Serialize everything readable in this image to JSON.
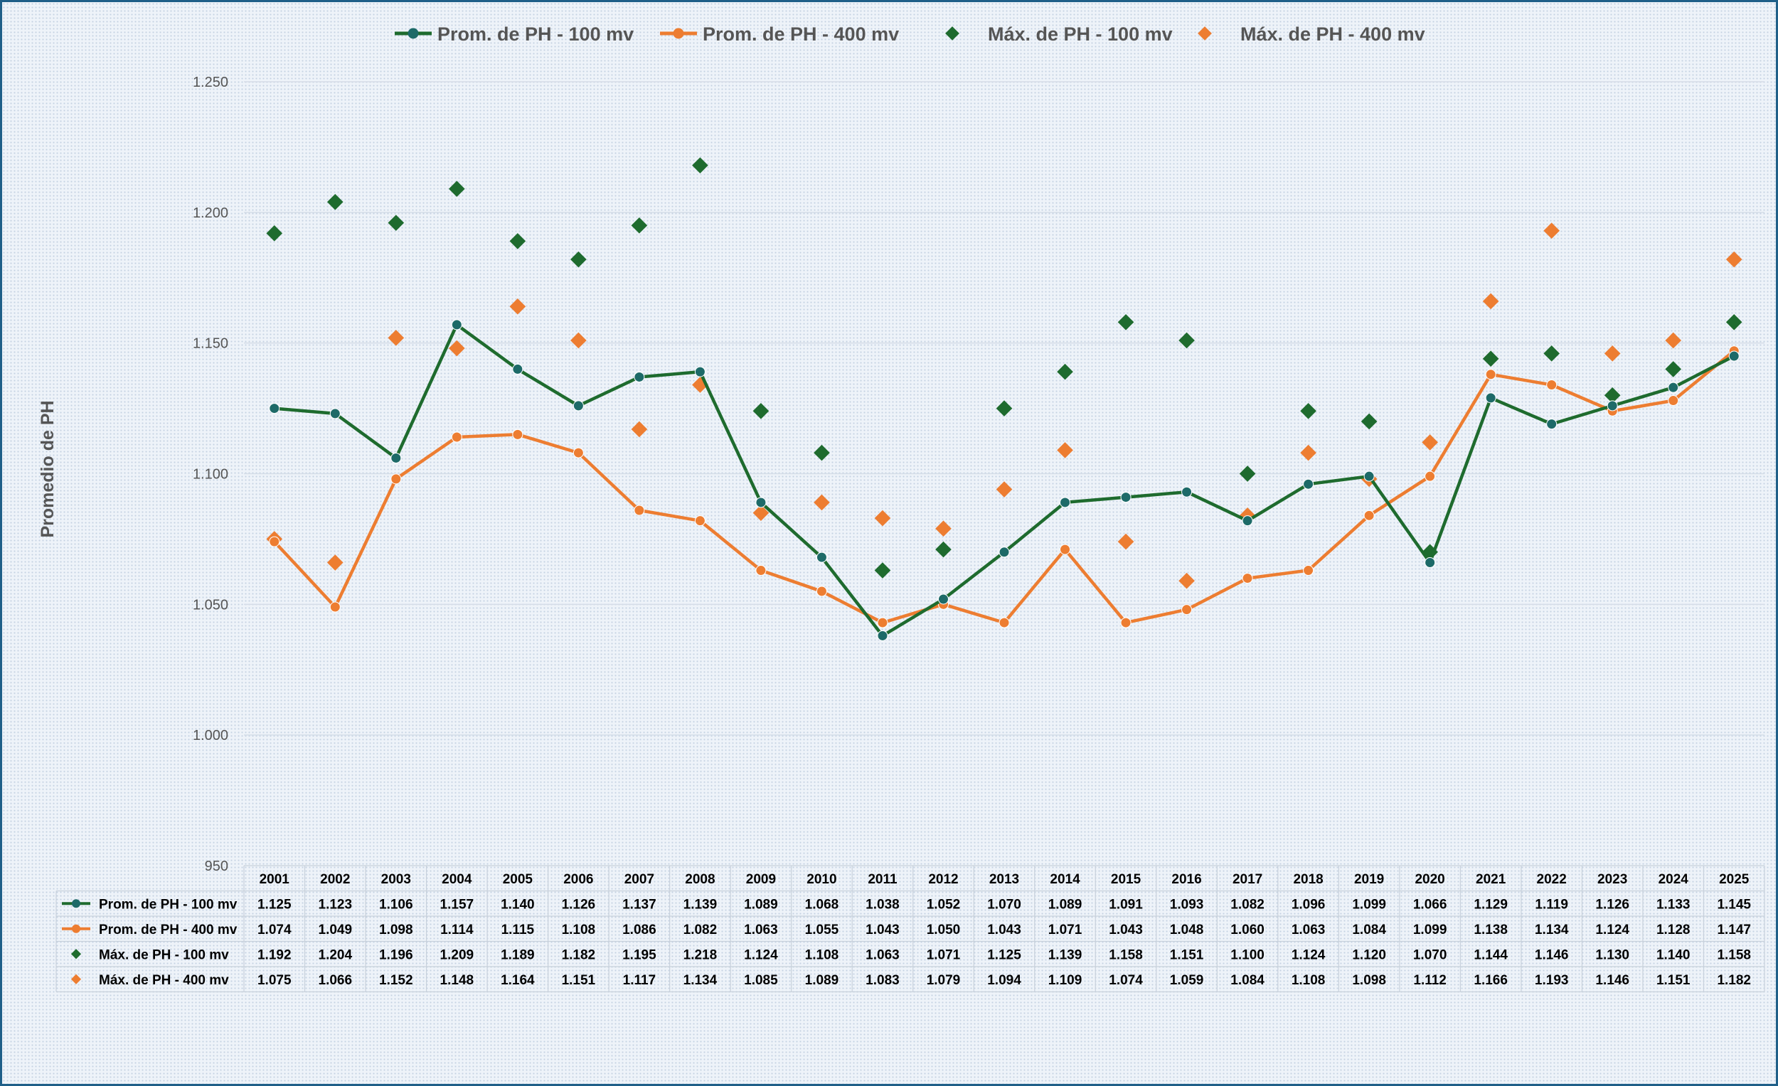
{
  "chart_data": {
    "type": "line",
    "ylabel": "Promedio de PH",
    "xlabel": "",
    "ylim": [
      950,
      1250
    ],
    "yticks": [
      "1.250",
      "1.200",
      "1.150",
      "1.100",
      "1.050",
      "1.000",
      "950"
    ],
    "ytick_values": [
      1250,
      1200,
      1150,
      1100,
      1050,
      1000,
      950
    ],
    "legend_position": "top",
    "grid": true,
    "data_table": true,
    "categories": [
      "2001",
      "2002",
      "2003",
      "2004",
      "2005",
      "2006",
      "2007",
      "2008",
      "2009",
      "2010",
      "2011",
      "2012",
      "2013",
      "2014",
      "2015",
      "2016",
      "2017",
      "2018",
      "2019",
      "2020",
      "2021",
      "2022",
      "2023",
      "2024",
      "2025"
    ],
    "series": [
      {
        "name": "Prom. de PH - 100 mv",
        "kind": "line",
        "color": "#1e6b2e",
        "marker_color": "#1d6a68",
        "values": [
          1125,
          1123,
          1106,
          1157,
          1140,
          1126,
          1137,
          1139,
          1089,
          1068,
          1038,
          1052,
          1070,
          1089,
          1091,
          1093,
          1082,
          1096,
          1099,
          1066,
          1129,
          1119,
          1126,
          1133,
          1145
        ],
        "labels": [
          "1.125",
          "1.123",
          "1.106",
          "1.157",
          "1.140",
          "1.126",
          "1.137",
          "1.139",
          "1.089",
          "1.068",
          "1.038",
          "1.052",
          "1.070",
          "1.089",
          "1.091",
          "1.093",
          "1.082",
          "1.096",
          "1.099",
          "1.066",
          "1.129",
          "1.119",
          "1.126",
          "1.133",
          "1.145"
        ]
      },
      {
        "name": "Prom. de PH - 400 mv",
        "kind": "line",
        "color": "#ed7d31",
        "marker_color": "#ed7d31",
        "values": [
          1074,
          1049,
          1098,
          1114,
          1115,
          1108,
          1086,
          1082,
          1063,
          1055,
          1043,
          1050,
          1043,
          1071,
          1043,
          1048,
          1060,
          1063,
          1084,
          1099,
          1138,
          1134,
          1124,
          1128,
          1147
        ],
        "labels": [
          "1.074",
          "1.049",
          "1.098",
          "1.114",
          "1.115",
          "1.108",
          "1.086",
          "1.082",
          "1.063",
          "1.055",
          "1.043",
          "1.050",
          "1.043",
          "1.071",
          "1.043",
          "1.048",
          "1.060",
          "1.063",
          "1.084",
          "1.099",
          "1.138",
          "1.134",
          "1.124",
          "1.128",
          "1.147"
        ]
      },
      {
        "name": "Máx. de PH - 100 mv",
        "kind": "scatter",
        "color": "#1e6b2e",
        "marker_color": "#1e6b2e",
        "values": [
          1192,
          1204,
          1196,
          1209,
          1189,
          1182,
          1195,
          1218,
          1124,
          1108,
          1063,
          1071,
          1125,
          1139,
          1158,
          1151,
          1100,
          1124,
          1120,
          1070,
          1144,
          1146,
          1130,
          1140,
          1158
        ],
        "labels": [
          "1.192",
          "1.204",
          "1.196",
          "1.209",
          "1.189",
          "1.182",
          "1.195",
          "1.218",
          "1.124",
          "1.108",
          "1.063",
          "1.071",
          "1.125",
          "1.139",
          "1.158",
          "1.151",
          "1.100",
          "1.124",
          "1.120",
          "1.070",
          "1.144",
          "1.146",
          "1.130",
          "1.140",
          "1.158"
        ]
      },
      {
        "name": "Máx. de PH - 400 mv",
        "kind": "scatter",
        "color": "#ed7d31",
        "marker_color": "#ed7d31",
        "values": [
          1075,
          1066,
          1152,
          1148,
          1164,
          1151,
          1117,
          1134,
          1085,
          1089,
          1083,
          1079,
          1094,
          1109,
          1074,
          1059,
          1084,
          1108,
          1098,
          1112,
          1166,
          1193,
          1146,
          1151,
          1182
        ],
        "labels": [
          "1.075",
          "1.066",
          "1.152",
          "1.148",
          "1.164",
          "1.151",
          "1.117",
          "1.134",
          "1.085",
          "1.089",
          "1.083",
          "1.079",
          "1.094",
          "1.109",
          "1.074",
          "1.059",
          "1.084",
          "1.108",
          "1.098",
          "1.112",
          "1.166",
          "1.193",
          "1.146",
          "1.151",
          "1.182"
        ]
      }
    ]
  }
}
